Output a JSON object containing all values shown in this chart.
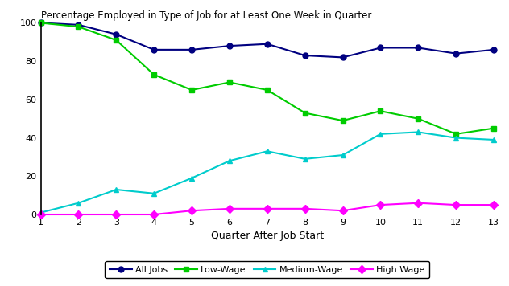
{
  "title": "Percentage Employed in Type of Job for at Least One Week in Quarter",
  "xlabel": "Quarter After Job Start",
  "quarters": [
    1,
    2,
    3,
    4,
    5,
    6,
    7,
    8,
    9,
    10,
    11,
    12,
    13
  ],
  "all_jobs": [
    100,
    99,
    94,
    86,
    86,
    88,
    89,
    83,
    82,
    87,
    87,
    84,
    86
  ],
  "low_wage": [
    100,
    98,
    91,
    73,
    65,
    69,
    65,
    53,
    49,
    54,
    50,
    42,
    45
  ],
  "medium_wage": [
    1,
    6,
    13,
    11,
    19,
    28,
    33,
    29,
    31,
    42,
    43,
    40,
    39
  ],
  "high_wage": [
    0,
    0,
    0,
    0,
    2,
    3,
    3,
    3,
    2,
    5,
    6,
    5,
    5
  ],
  "all_jobs_color": "#000080",
  "low_wage_color": "#00CC00",
  "medium_wage_color": "#00CCCC",
  "high_wage_color": "#FF00FF",
  "ylim": [
    0,
    100
  ],
  "xlim": [
    1,
    13
  ],
  "yticks": [
    0,
    20,
    40,
    60,
    80,
    100
  ],
  "xticks": [
    1,
    2,
    3,
    4,
    5,
    6,
    7,
    8,
    9,
    10,
    11,
    12,
    13
  ],
  "legend_labels": [
    "All Jobs",
    "Low-Wage",
    "Medium-Wage",
    "High Wage"
  ],
  "title_fontsize": 8.5,
  "axis_label_fontsize": 9,
  "tick_fontsize": 8,
  "legend_fontsize": 8,
  "linewidth": 1.5,
  "markersize": 5,
  "background_color": "#FFFFFF"
}
